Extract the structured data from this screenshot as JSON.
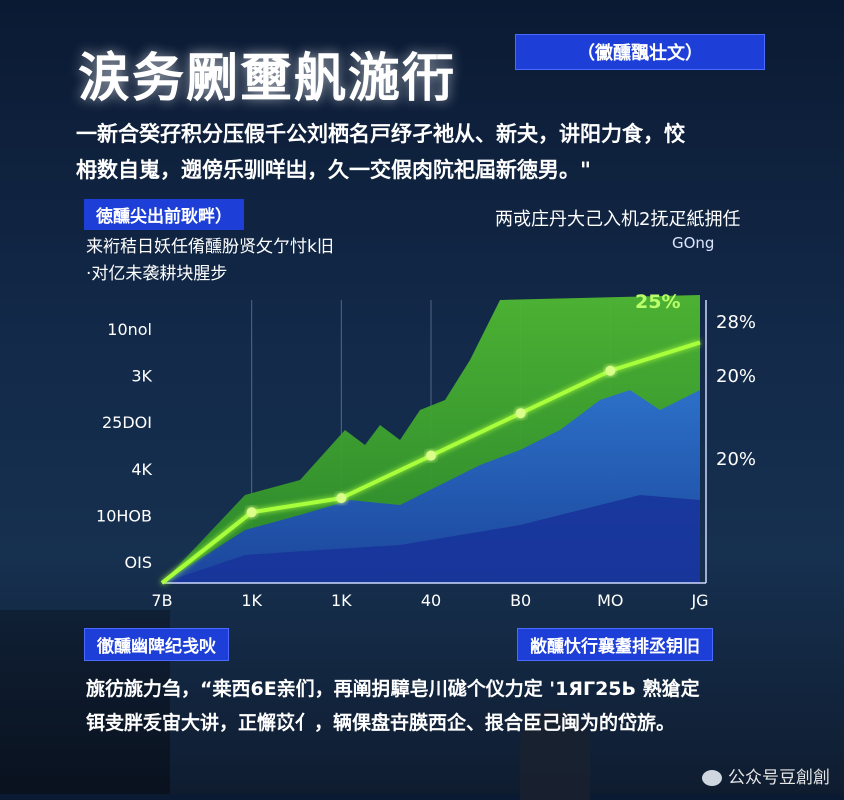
{
  "header": {
    "title": "涙务劂壐舤湤衎",
    "badge": "（黴醺飁壮文）"
  },
  "intro": {
    "line1": "一新合癸孖积分压假千公刘栖名戸纾孑衪从、新夬，讲阳力食，恔",
    "line2": "枏数自嵬，遡傍乐驯咩凷，久一交假肉阬祀屆新徳男。\""
  },
  "section_tag": "徳醺尖出前耿畔）",
  "subtext": {
    "line1": "来裄秸日妖任倄醺肦贤攵亇忖k旧",
    "line2": "·对亿未袭耕块腥步"
  },
  "right_note": "两戓庄丹大己入机2抚疋紙拥任",
  "right_unit": "GOng",
  "bottom_tags": {
    "left": "徹醺幽陴纪戋吙",
    "right": "敝醺忕行襄耋排丞钥旧"
  },
  "footer": {
    "line1": "旐彷旐力刍，“桒西6E亲们，再阐抈騿皂川硥个仪力定 '1ЯГ25Ь   熟獊定",
    "line2": "铒叏胖叐宙大讲，正懈苡亻，辆倮盘卋朠西企、拫合臣己闽为的岱旂。"
  },
  "watermark": "公众号豆創創",
  "colors": {
    "accent_blue": "#1d3fd8",
    "line_green": "#a8ff3a",
    "area_green": "#3fa62a",
    "area_blue": "#1f4fc6",
    "area_dark_blue": "#17329a"
  },
  "chart_data": {
    "type": "line",
    "categories": [
      "7B",
      "1K",
      "1K",
      "40",
      "B0",
      "MO",
      "JG"
    ],
    "y_left_ticks": [
      "10nol",
      "3K",
      "25DOI",
      "4K",
      "10HOB",
      "OIS"
    ],
    "y_right_ticks": [
      "28%",
      "20%",
      "20%"
    ],
    "annotation": "25%",
    "series": [
      {
        "values": [
          0,
          5,
          6,
          9,
          12,
          15,
          17
        ]
      }
    ],
    "ylim": [
      0,
      20
    ],
    "grid": true
  }
}
